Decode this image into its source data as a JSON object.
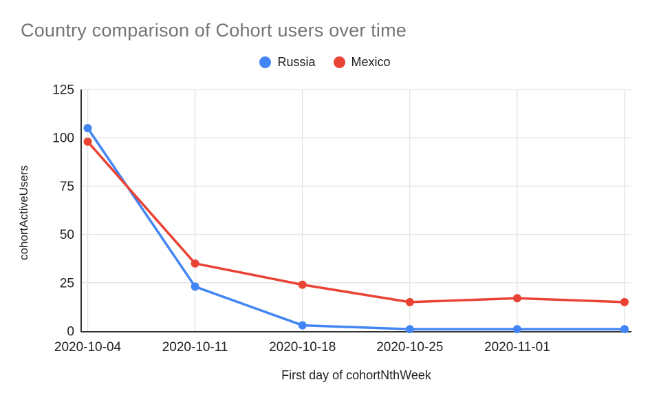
{
  "chart": {
    "title": "Country comparison of Cohort users over time",
    "x_axis_title": "First day of cohortNthWeek",
    "y_axis_title": "cohortActiveUsers",
    "colors": {
      "background": "#ffffff",
      "title_text": "#757575",
      "tick_text": "#202124",
      "grid": "#e6e6e6",
      "axis": "#333333",
      "series_russia": "#4285f4",
      "series_mexico": "#ea4335"
    }
  },
  "chart_data": {
    "type": "line",
    "title": "Country comparison of Cohort users over time",
    "xlabel": "First day of cohortNthWeek",
    "ylabel": "cohortActiveUsers",
    "categories": [
      "2020-10-04",
      "2020-10-11",
      "2020-10-18",
      "2020-10-25",
      "2020-11-01",
      ""
    ],
    "x_tick_labels": [
      "2020-10-04",
      "2020-10-11",
      "2020-10-18",
      "2020-10-25",
      "2020-11-01"
    ],
    "series": [
      {
        "name": "Russia",
        "color": "#4285f4",
        "values": [
          105,
          23,
          3,
          1,
          1,
          1
        ]
      },
      {
        "name": "Mexico",
        "color": "#ea4335",
        "values": [
          98,
          35,
          24,
          15,
          17,
          15
        ]
      }
    ],
    "ylim": [
      0,
      125
    ],
    "y_ticks": [
      0,
      25,
      50,
      75,
      100,
      125
    ],
    "grid": true,
    "legend_position": "top",
    "notes": "six data points per series; sixth x position has no tick label"
  }
}
